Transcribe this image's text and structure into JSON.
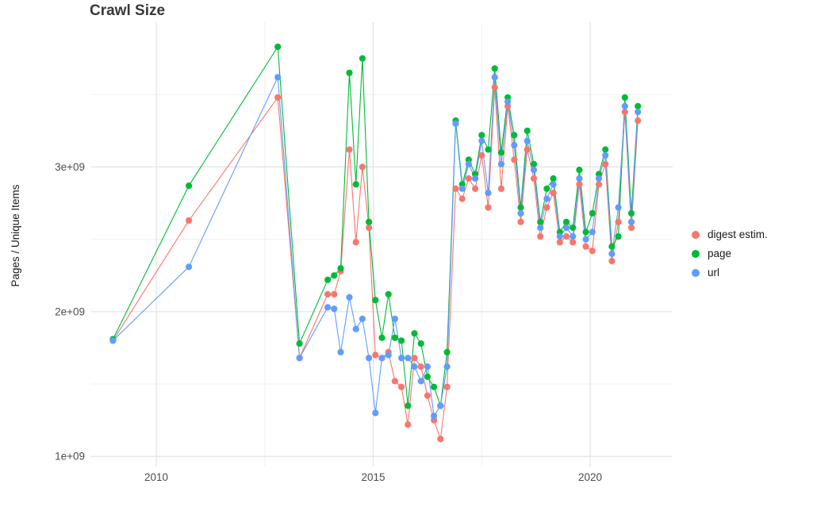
{
  "title": "Crawl Size",
  "ylabel": "Pages / Unique Items",
  "chart_data": {
    "type": "line",
    "title": "Crawl Size",
    "xlabel": "",
    "ylabel": "Pages / Unique Items",
    "grid": true,
    "legend_position": "right",
    "y_scale": 1000000000,
    "xlim": [
      2008.5,
      2021.9
    ],
    "ylim": [
      0.93,
      4.0
    ],
    "x_ticks": [
      {
        "v": 2010,
        "label": "2010"
      },
      {
        "v": 2015,
        "label": "2015"
      },
      {
        "v": 2020,
        "label": "2020"
      }
    ],
    "x_minor": [
      2012.5,
      2017.5
    ],
    "y_ticks": [
      {
        "v": 1,
        "label": "1e+09"
      },
      {
        "v": 2,
        "label": "2e+09"
      },
      {
        "v": 3,
        "label": "3e+09"
      }
    ],
    "y_minor": [
      1.5,
      2.5,
      3.5
    ],
    "x": [
      2009.0,
      2010.75,
      2012.8,
      2013.3,
      2013.95,
      2014.1,
      2014.25,
      2014.45,
      2014.6,
      2014.75,
      2014.9,
      2015.05,
      2015.2,
      2015.35,
      2015.5,
      2015.65,
      2015.8,
      2015.95,
      2016.1,
      2016.25,
      2016.4,
      2016.55,
      2016.7,
      2016.9,
      2017.05,
      2017.2,
      2017.35,
      2017.5,
      2017.65,
      2017.8,
      2017.95,
      2018.1,
      2018.25,
      2018.4,
      2018.55,
      2018.7,
      2018.85,
      2019.0,
      2019.15,
      2019.3,
      2019.45,
      2019.6,
      2019.75,
      2019.9,
      2020.05,
      2020.2,
      2020.35,
      2020.5,
      2020.65,
      2020.8,
      2020.95,
      2021.1
    ],
    "series": [
      {
        "name": "digest estim.",
        "color": "#F8766D",
        "values": [
          1.8,
          2.63,
          3.48,
          1.68,
          2.12,
          2.12,
          2.28,
          3.12,
          2.48,
          3.0,
          2.58,
          1.7,
          1.68,
          1.72,
          1.52,
          1.48,
          1.22,
          1.68,
          1.62,
          1.42,
          1.25,
          1.12,
          1.48,
          2.85,
          2.78,
          2.92,
          2.85,
          3.08,
          2.72,
          3.55,
          2.85,
          3.42,
          3.05,
          2.62,
          3.12,
          2.92,
          2.52,
          2.72,
          2.82,
          2.48,
          2.52,
          2.48,
          2.88,
          2.45,
          2.42,
          2.88,
          3.02,
          2.35,
          2.62,
          3.38,
          2.58,
          3.32
        ]
      },
      {
        "name": "page",
        "color": "#00BA38",
        "values": [
          1.81,
          2.87,
          3.83,
          1.78,
          2.22,
          2.25,
          2.3,
          3.65,
          2.88,
          3.75,
          2.62,
          2.08,
          1.82,
          2.12,
          1.82,
          1.8,
          1.35,
          1.85,
          1.78,
          1.55,
          1.48,
          1.35,
          1.72,
          3.32,
          2.88,
          3.05,
          2.95,
          3.22,
          3.12,
          3.68,
          3.1,
          3.48,
          3.22,
          2.72,
          3.25,
          3.02,
          2.62,
          2.85,
          2.92,
          2.55,
          2.62,
          2.58,
          2.98,
          2.55,
          2.68,
          2.95,
          3.12,
          2.45,
          2.52,
          3.48,
          2.68,
          3.42
        ]
      },
      {
        "name": "url",
        "color": "#619CFF",
        "values": [
          1.8,
          2.31,
          3.62,
          1.68,
          2.03,
          2.02,
          1.72,
          2.1,
          1.88,
          1.95,
          1.68,
          1.3,
          1.68,
          1.7,
          1.95,
          1.68,
          1.68,
          1.62,
          1.52,
          1.62,
          1.28,
          1.35,
          1.62,
          3.3,
          2.85,
          3.02,
          2.92,
          3.18,
          2.82,
          3.62,
          3.02,
          3.45,
          3.15,
          2.68,
          3.18,
          2.98,
          2.58,
          2.78,
          2.88,
          2.52,
          2.58,
          2.52,
          2.92,
          2.5,
          2.55,
          2.92,
          3.08,
          2.4,
          2.72,
          3.42,
          2.62,
          3.38
        ]
      }
    ],
    "colors": {
      "grid_major": "#e3e3e3",
      "grid_minor": "#f0f0f0",
      "tick_label": "#4d4d4d"
    }
  }
}
